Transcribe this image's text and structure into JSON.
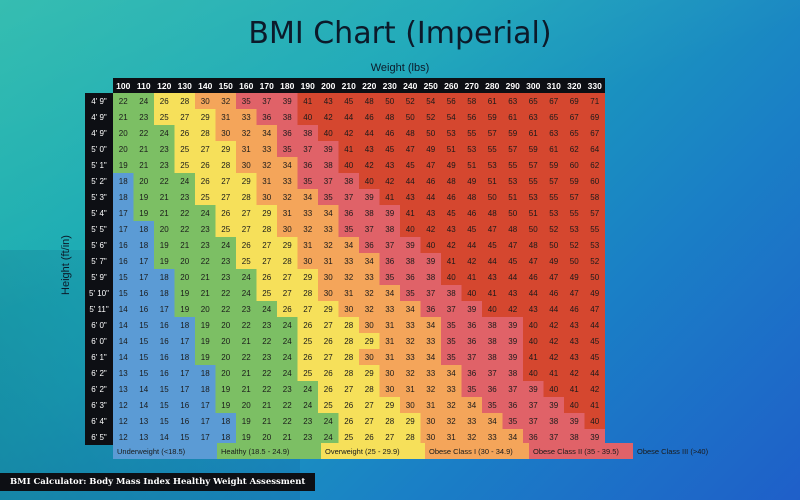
{
  "chart_data": {
    "type": "heatmap",
    "title": "BMI Chart (Imperial)",
    "xlabel": "Weight (lbs)",
    "ylabel": "Height (ft/in)",
    "columns": [
      "100",
      "110",
      "120",
      "130",
      "140",
      "150",
      "160",
      "170",
      "180",
      "190",
      "200",
      "210",
      "220",
      "230",
      "240",
      "250",
      "260",
      "270",
      "280",
      "290",
      "300",
      "310",
      "320",
      "330"
    ],
    "rows": [
      {
        "height": "4' 9\"",
        "values": [
          22,
          24,
          26,
          28,
          30,
          32,
          35,
          37,
          39,
          41,
          43,
          45,
          48,
          50,
          52,
          54,
          56,
          58,
          61,
          63,
          65,
          67,
          69,
          71
        ]
      },
      {
        "height": "4' 9\"",
        "values": [
          21,
          23,
          25,
          27,
          29,
          31,
          33,
          36,
          38,
          40,
          42,
          44,
          46,
          48,
          50,
          52,
          54,
          56,
          59,
          61,
          63,
          65,
          67,
          69
        ]
      },
      {
        "height": "4' 9\"",
        "values": [
          20,
          22,
          24,
          26,
          28,
          30,
          32,
          34,
          36,
          38,
          40,
          42,
          44,
          46,
          48,
          50,
          53,
          55,
          57,
          59,
          61,
          63,
          65,
          67
        ]
      },
      {
        "height": "5' 0\"",
        "values": [
          20,
          21,
          23,
          25,
          27,
          29,
          31,
          33,
          35,
          37,
          39,
          41,
          43,
          45,
          47,
          49,
          51,
          53,
          55,
          57,
          59,
          61,
          62,
          64
        ]
      },
      {
        "height": "5' 1\"",
        "values": [
          19,
          21,
          23,
          25,
          26,
          28,
          30,
          32,
          34,
          36,
          38,
          40,
          42,
          43,
          45,
          47,
          49,
          51,
          53,
          55,
          57,
          59,
          60,
          62
        ]
      },
      {
        "height": "5' 2\"",
        "values": [
          18,
          20,
          22,
          24,
          26,
          27,
          29,
          31,
          33,
          35,
          37,
          38,
          40,
          42,
          44,
          46,
          48,
          49,
          51,
          53,
          55,
          57,
          59,
          60
        ]
      },
      {
        "height": "5' 3\"",
        "values": [
          18,
          19,
          21,
          23,
          25,
          27,
          28,
          30,
          32,
          34,
          35,
          37,
          39,
          41,
          43,
          44,
          46,
          48,
          50,
          51,
          53,
          55,
          57,
          58
        ]
      },
      {
        "height": "5' 4\"",
        "values": [
          17,
          19,
          21,
          22,
          24,
          26,
          27,
          29,
          31,
          33,
          34,
          36,
          38,
          39,
          41,
          43,
          45,
          46,
          48,
          50,
          51,
          53,
          55,
          57
        ]
      },
      {
        "height": "5' 5\"",
        "values": [
          17,
          18,
          20,
          22,
          23,
          25,
          27,
          28,
          30,
          32,
          33,
          35,
          37,
          38,
          40,
          42,
          43,
          45,
          47,
          48,
          50,
          52,
          53,
          55
        ]
      },
      {
        "height": "5' 6\"",
        "values": [
          16,
          18,
          19,
          21,
          23,
          24,
          26,
          27,
          29,
          31,
          32,
          34,
          36,
          37,
          39,
          40,
          42,
          44,
          45,
          47,
          48,
          50,
          52,
          53
        ]
      },
      {
        "height": "5' 7\"",
        "values": [
          16,
          17,
          19,
          20,
          22,
          23,
          25,
          27,
          28,
          30,
          31,
          33,
          34,
          36,
          38,
          39,
          41,
          42,
          44,
          45,
          47,
          49,
          50,
          52
        ]
      },
      {
        "height": "5' 9\"",
        "values": [
          15,
          17,
          18,
          20,
          21,
          23,
          24,
          26,
          27,
          29,
          30,
          32,
          33,
          35,
          36,
          38,
          40,
          41,
          43,
          44,
          46,
          47,
          49,
          50
        ]
      },
      {
        "height": "5' 10\"",
        "values": [
          15,
          16,
          18,
          19,
          21,
          22,
          24,
          25,
          27,
          28,
          30,
          31,
          32,
          34,
          35,
          37,
          38,
          40,
          41,
          43,
          44,
          46,
          47,
          49
        ]
      },
      {
        "height": "5' 11\"",
        "values": [
          14,
          16,
          17,
          19,
          20,
          22,
          23,
          24,
          26,
          27,
          29,
          30,
          32,
          33,
          34,
          36,
          37,
          39,
          40,
          42,
          43,
          44,
          46,
          47
        ]
      },
      {
        "height": "6' 0\"",
        "values": [
          14,
          15,
          16,
          18,
          19,
          20,
          22,
          23,
          24,
          26,
          27,
          28,
          30,
          31,
          33,
          34,
          35,
          36,
          38,
          39,
          40,
          42,
          43,
          44
        ]
      },
      {
        "height": "6' 0\"",
        "values": [
          14,
          15,
          16,
          17,
          19,
          20,
          21,
          22,
          24,
          25,
          26,
          28,
          29,
          31,
          32,
          33,
          35,
          36,
          38,
          39,
          40,
          42,
          43,
          45
        ]
      },
      {
        "height": "6' 1\"",
        "values": [
          14,
          15,
          16,
          18,
          19,
          20,
          22,
          23,
          24,
          26,
          27,
          28,
          30,
          31,
          33,
          34,
          35,
          37,
          38,
          39,
          41,
          42,
          43,
          45
        ]
      },
      {
        "height": "6' 2\"",
        "values": [
          13,
          15,
          16,
          17,
          18,
          20,
          21,
          22,
          24,
          25,
          26,
          28,
          29,
          30,
          32,
          33,
          34,
          36,
          37,
          38,
          40,
          41,
          42,
          44
        ]
      },
      {
        "height": "6' 2\"",
        "values": [
          13,
          14,
          15,
          17,
          18,
          19,
          21,
          22,
          23,
          24,
          26,
          27,
          28,
          30,
          31,
          32,
          33,
          35,
          36,
          37,
          39,
          40,
          41,
          42
        ]
      },
      {
        "height": "6' 3\"",
        "values": [
          12,
          14,
          15,
          16,
          17,
          19,
          20,
          21,
          22,
          24,
          25,
          26,
          27,
          29,
          30,
          31,
          32,
          34,
          35,
          36,
          37,
          39,
          40,
          41
        ]
      },
      {
        "height": "6' 4\"",
        "values": [
          12,
          13,
          15,
          16,
          17,
          18,
          19,
          21,
          22,
          23,
          24,
          26,
          27,
          28,
          29,
          30,
          32,
          33,
          34,
          35,
          37,
          38,
          39,
          40
        ]
      },
      {
        "height": "6' 5\"",
        "values": [
          12,
          13,
          14,
          15,
          17,
          18,
          19,
          20,
          21,
          23,
          24,
          25,
          26,
          27,
          28,
          30,
          31,
          32,
          33,
          34,
          36,
          37,
          38,
          39
        ]
      }
    ],
    "legend": [
      {
        "label": "Underweight (<18.5)",
        "color": "#5b9bd5"
      },
      {
        "label": "Healthy (18.5 - 24.9)",
        "color": "#7cbf64"
      },
      {
        "label": "Overweight (25 - 29.9)",
        "color": "#f6e05a"
      },
      {
        "label": "Obese Class I (30 - 34.9)",
        "color": "#f4a55a"
      },
      {
        "label": "Obese Class II (35 - 39.5)",
        "color": "#e06268"
      },
      {
        "label": "Obese Class III (>40)",
        "color": "#d5472f"
      }
    ],
    "legend_placement": "bottom"
  },
  "footer_text": "BMI Calculator: Body Mass Index Healthy Weight Assessment"
}
